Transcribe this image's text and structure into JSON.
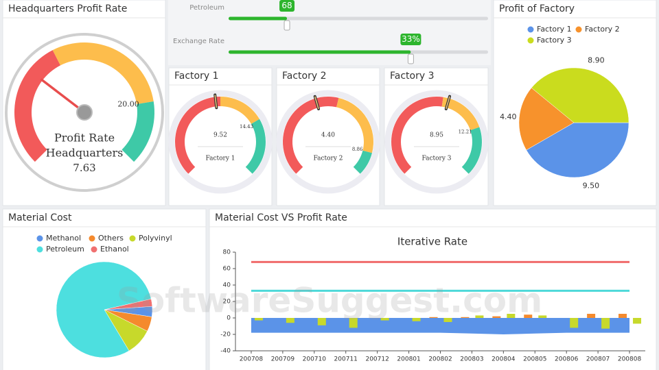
{
  "sliders": [
    {
      "label": "Petroleum",
      "value": 68,
      "range": [
        50,
        130
      ]
    },
    {
      "label": "Exchange Rate",
      "value": 33,
      "value_label": "33%",
      "range": [
        0,
        47
      ]
    }
  ],
  "watermark": "SoftwareSuggest.com",
  "chart_data": [
    {
      "type": "gauge",
      "title": "Headquarters Profit Rate",
      "labels": [
        "Profit Rate",
        "Headquarters"
      ],
      "value": 7.63,
      "min": 0,
      "max": 25,
      "band_edge": 10,
      "threshold": {
        "value": 20,
        "label": "20.00"
      },
      "colors": [
        "#f25a5a",
        "#fdbd4c",
        "#3ec9a7"
      ]
    },
    {
      "type": "gauge",
      "title": "Factory 1",
      "label": "Factory 1",
      "value": 9.52,
      "min": 0,
      "max": 20,
      "band_edge": 10,
      "threshold": 14.43,
      "colors": [
        "#f25a5a",
        "#fdbd4c",
        "#3ec9a7"
      ]
    },
    {
      "type": "gauge",
      "title": "Factory 2",
      "label": "Factory 2",
      "value": 4.4,
      "value_label": "4.40",
      "min": 0,
      "max": 10,
      "band_edge": 5.5,
      "threshold": 8.86,
      "colors": [
        "#f25a5a",
        "#fdbd4c",
        "#3ec9a7"
      ]
    },
    {
      "type": "gauge",
      "title": "Factory 3",
      "label": "Factory 3",
      "value": 8.95,
      "min": 0,
      "max": 16,
      "band_edge": 8.5,
      "threshold": 12.21,
      "colors": [
        "#f25a5a",
        "#fdbd4c",
        "#3ec9a7"
      ]
    },
    {
      "type": "pie",
      "title": "Profit of Factory",
      "categories": [
        "Factory 1",
        "Factory 2",
        "Factory 3"
      ],
      "values": [
        9.5,
        4.4,
        8.9
      ],
      "value_labels": [
        "9.50",
        "4.40",
        "8.90"
      ],
      "colors": [
        "#5b93e8",
        "#f7922c",
        "#cadc1e"
      ]
    },
    {
      "type": "pie",
      "title": "Material Cost",
      "categories": [
        "Methanol",
        "Others",
        "Polyvinyl",
        "Petroleum",
        "Ethanol"
      ],
      "values": [
        3.5,
        5,
        9,
        80,
        2.5
      ],
      "colors": [
        "#5b93e8",
        "#f58a2d",
        "#c7d92b",
        "#4ddfdf",
        "#f07070"
      ]
    },
    {
      "type": "combo",
      "panel_title": "Material Cost VS Profit Rate",
      "title": "Iterative Rate",
      "categories": [
        "200708",
        "200709",
        "200710",
        "200711",
        "200712",
        "200801",
        "200802",
        "200803",
        "200804",
        "200805",
        "200806",
        "200807",
        "200808"
      ],
      "ylim": [
        -40,
        80
      ],
      "yticks": [
        -40,
        -20,
        0,
        20,
        40,
        60,
        80
      ],
      "series": [
        {
          "type": "area",
          "color": "#5b93e8",
          "values": [
            -18,
            -18,
            -18,
            -18,
            -18,
            -18,
            -18,
            -19,
            -20,
            -19,
            -18,
            -18,
            -18
          ]
        },
        {
          "type": "bar",
          "color": "#f58a2d",
          "values": [
            0,
            0,
            0,
            0,
            0,
            0,
            1,
            1,
            2,
            4,
            0,
            5,
            5
          ]
        },
        {
          "type": "bar",
          "color": "#c7d92b",
          "values": [
            -3,
            -6,
            -9,
            -12,
            -3,
            -4,
            -5,
            3,
            5,
            3,
            -12,
            -13,
            -7
          ]
        },
        {
          "type": "line",
          "color": "#f06b6b",
          "values": [
            68,
            68,
            68,
            68,
            68,
            68,
            68,
            68,
            68,
            68,
            68,
            68,
            68
          ]
        },
        {
          "type": "line",
          "color": "#4dd9d9",
          "values": [
            33,
            33,
            33,
            33,
            33,
            33,
            33,
            33,
            33,
            33,
            33,
            33,
            33
          ]
        }
      ]
    }
  ]
}
